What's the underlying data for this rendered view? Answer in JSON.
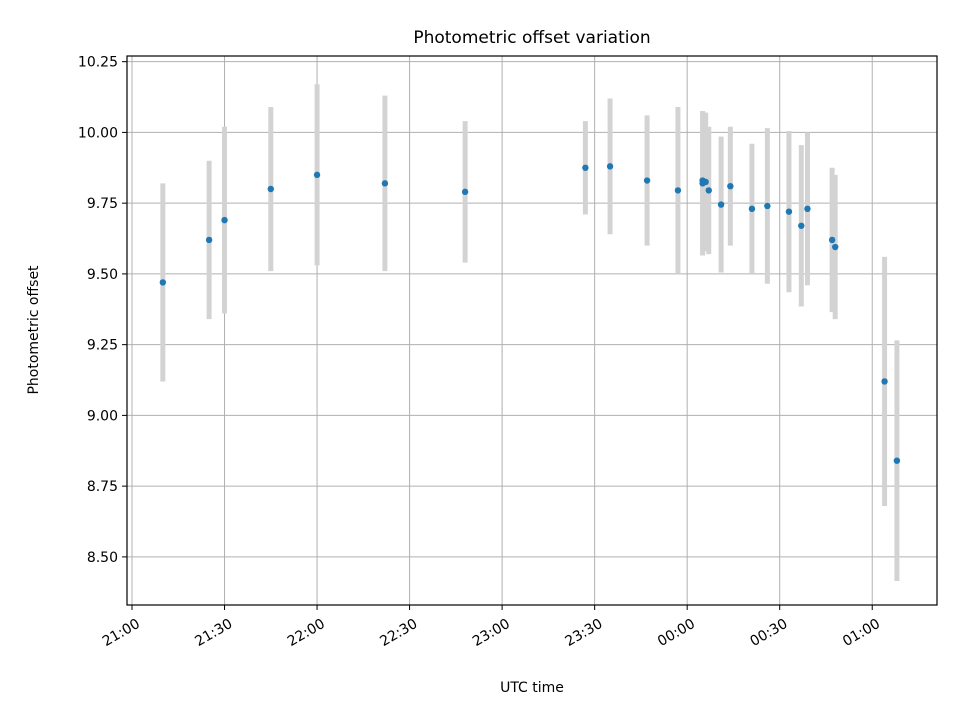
{
  "chart_data": {
    "type": "scatter",
    "title": "Photometric offset variation",
    "xlabel": "UTC time",
    "ylabel": "Photometric offset",
    "x_tick_labels": [
      "21:00",
      "21:30",
      "22:00",
      "22:30",
      "23:00",
      "23:30",
      "00:00",
      "00:30",
      "01:00"
    ],
    "y_ticks": [
      8.5,
      8.75,
      9.0,
      9.25,
      9.5,
      9.75,
      10.0,
      10.25
    ],
    "y_tick_labels": [
      "8.50",
      "8.75",
      "9.00",
      "9.25",
      "9.50",
      "9.75",
      "10.00",
      "10.25"
    ],
    "xlim": [
      "21:00",
      "01:21"
    ],
    "ylim": [
      8.33,
      10.27
    ],
    "grid": true,
    "colors": {
      "point": "#1f77b4",
      "errorbar": "#d3d3d3",
      "grid": "#b0b0b0"
    },
    "series": [
      {
        "x": [
          "21:10",
          "21:25",
          "21:30",
          "21:45",
          "22:00",
          "22:22",
          "22:48",
          "23:27",
          "23:35",
          "23:47",
          "23:57",
          "00:05",
          "00:05",
          "00:06",
          "00:07",
          "00:11",
          "00:14",
          "00:21",
          "00:26",
          "00:33",
          "00:37",
          "00:39",
          "00:47",
          "00:48",
          "01:04",
          "01:08"
        ],
        "y": [
          9.47,
          9.62,
          9.69,
          9.8,
          9.85,
          9.82,
          9.79,
          9.875,
          9.88,
          9.83,
          9.795,
          9.82,
          9.83,
          9.825,
          9.795,
          9.745,
          9.81,
          9.73,
          9.74,
          9.72,
          9.67,
          9.73,
          9.62,
          9.595,
          9.12,
          8.84
        ],
        "yerr": [
          0.35,
          0.28,
          0.33,
          0.29,
          0.32,
          0.31,
          0.25,
          0.165,
          0.24,
          0.23,
          0.295,
          0.255,
          0.245,
          0.245,
          0.225,
          0.24,
          0.21,
          0.23,
          0.275,
          0.285,
          0.285,
          0.27,
          0.255,
          0.255,
          0.44,
          0.425
        ]
      }
    ]
  }
}
